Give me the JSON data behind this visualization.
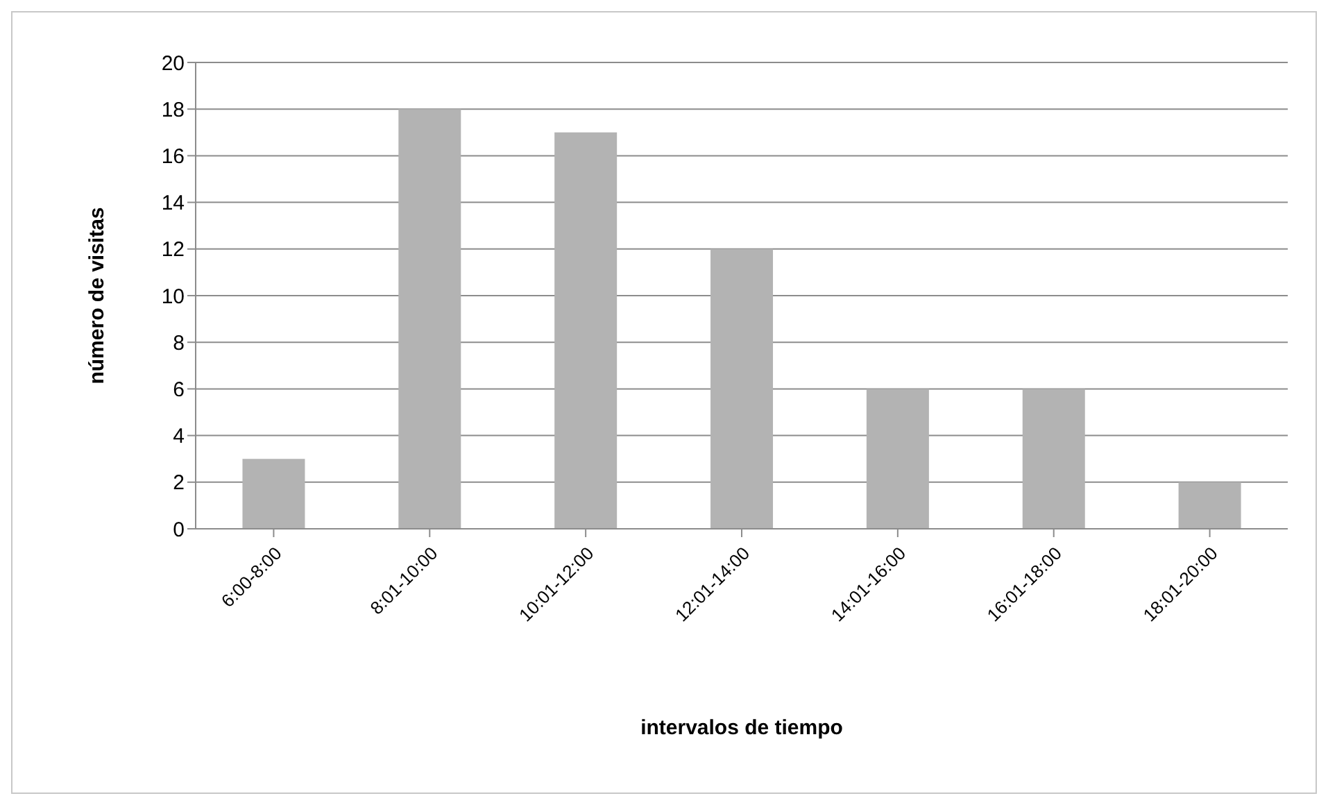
{
  "chart_data": {
    "type": "bar",
    "xlabel": "intervalos de tiempo",
    "ylabel": "número de visitas",
    "categories": [
      "6:00-8:00",
      "8:01-10:00",
      "10:01-12:00",
      "12:01-14:00",
      "14:01-16:00",
      "16:01-18:00",
      "18:01-20:00"
    ],
    "values": [
      3,
      18,
      17,
      12,
      6,
      6,
      2
    ],
    "color": "#b3b3b3",
    "ylim": [
      0,
      20
    ],
    "yticks": [
      0,
      2,
      4,
      6,
      8,
      10,
      12,
      14,
      16,
      18,
      20
    ],
    "grid": "y",
    "legend": false
  }
}
